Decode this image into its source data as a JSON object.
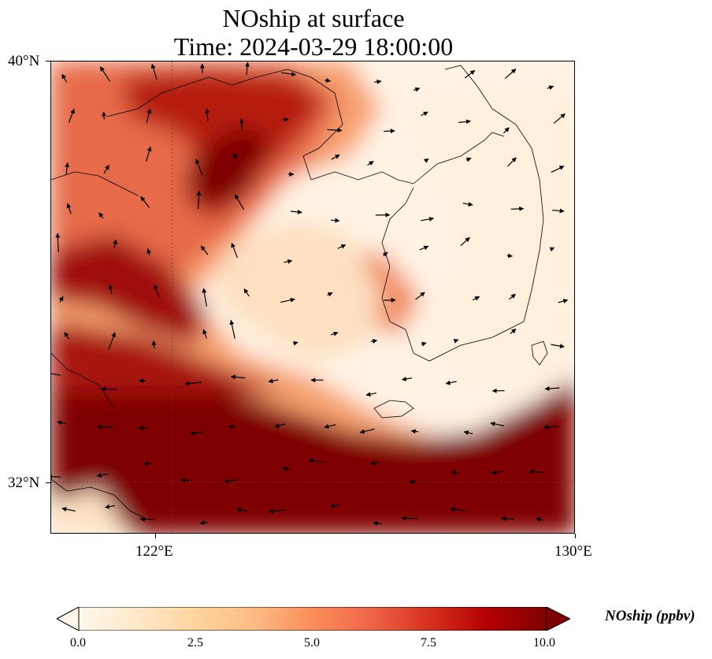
{
  "title": {
    "line1": "NOship at surface",
    "line2": "Time: 2024-03-29 18:00:00"
  },
  "map": {
    "lon_range": [
      119.6,
      130
    ],
    "lat_range": [
      31.0,
      40
    ],
    "gridlines": {
      "lon": [
        122
      ],
      "lat": [
        32
      ],
      "style": "dotted"
    }
  },
  "axes": {
    "lat_ticks": [
      {
        "value": 40,
        "label": "40°N"
      },
      {
        "value": 32,
        "label": "32°N"
      }
    ],
    "lon_ticks": [
      {
        "value": 122,
        "label": "122°E"
      },
      {
        "value": 130,
        "label": "130°E"
      }
    ]
  },
  "colorbar": {
    "title": "NOship (ppbv)",
    "min": 0.0,
    "max": 10.0,
    "extend": "both",
    "colormap": "OrRd",
    "ticks": [
      {
        "value": 0.0,
        "label": "0.0"
      },
      {
        "value": 2.5,
        "label": "2.5"
      },
      {
        "value": 5.0,
        "label": "5.0"
      },
      {
        "value": 7.5,
        "label": "7.5"
      },
      {
        "value": 10.0,
        "label": "10.0"
      }
    ],
    "colors": [
      "#fff7ec",
      "#fee8c8",
      "#fdd49e",
      "#fdbb84",
      "#fc8d59",
      "#ef6548",
      "#d7301f",
      "#b30000",
      "#7f0000"
    ]
  },
  "wind_vectors_shown": true
}
